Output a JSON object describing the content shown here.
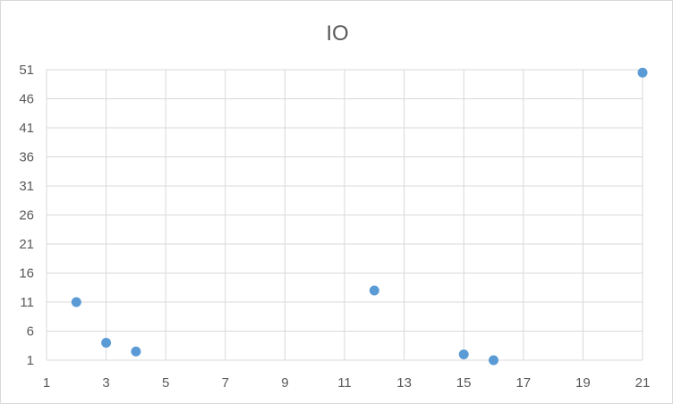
{
  "chart_data": {
    "type": "scatter",
    "title": "IO",
    "xlabel": "",
    "ylabel": "",
    "xlim": [
      1,
      21
    ],
    "ylim": [
      1,
      51
    ],
    "x_ticks": [
      "1",
      "3",
      "5",
      "7",
      "9",
      "11",
      "13",
      "15",
      "17",
      "19",
      "21"
    ],
    "y_ticks": [
      "1",
      "6",
      "11",
      "16",
      "21",
      "26",
      "31",
      "36",
      "41",
      "46",
      "51"
    ],
    "grid": true,
    "legend": "none",
    "marker_color": "#5b9bd5",
    "series": [
      {
        "points": [
          {
            "x": 2,
            "y": 11
          },
          {
            "x": 3,
            "y": 4
          },
          {
            "x": 4,
            "y": 2.5
          },
          {
            "x": 12,
            "y": 13
          },
          {
            "x": 15,
            "y": 2
          },
          {
            "x": 16,
            "y": 1
          },
          {
            "x": 21,
            "y": 50.5
          }
        ]
      }
    ]
  }
}
